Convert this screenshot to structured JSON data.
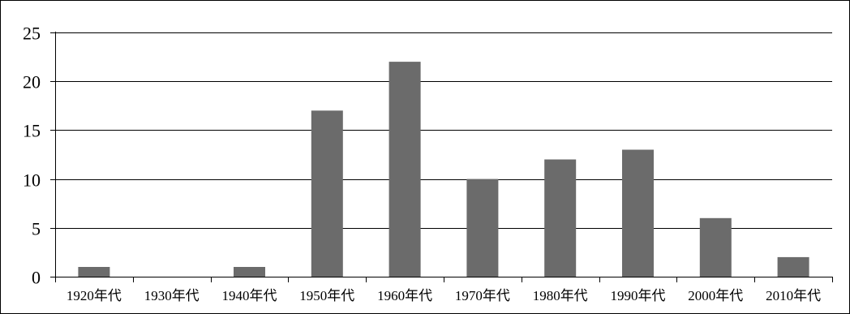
{
  "chart_data": {
    "type": "bar",
    "categories": [
      "1920年代",
      "1930年代",
      "1940年代",
      "1950年代",
      "1960年代",
      "1970年代",
      "1980年代",
      "1990年代",
      "2000年代",
      "2010年代"
    ],
    "values": [
      1,
      0,
      1,
      17,
      22,
      10,
      12,
      13,
      6,
      2
    ],
    "title": "",
    "xlabel": "",
    "ylabel": "",
    "ylim": [
      0,
      25
    ],
    "yticks": [
      0,
      5,
      10,
      15,
      20,
      25
    ],
    "grid": "horizontal",
    "legend": "none",
    "colors": {
      "bar": "#6b6b6b",
      "grid": "#000000",
      "axis": "#000000"
    }
  }
}
